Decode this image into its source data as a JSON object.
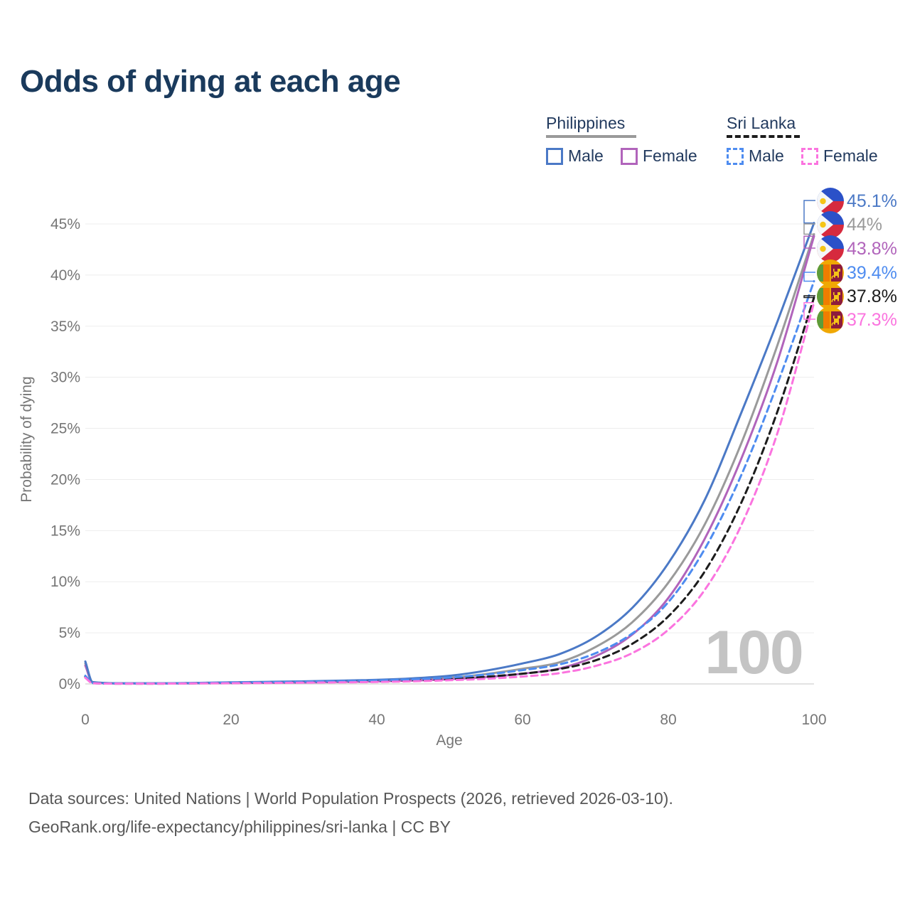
{
  "title": "Odds of dying at each age",
  "legend": {
    "groups": [
      {
        "name": "Philippines",
        "line_style": "solid",
        "underline_color": "#9a9a9a",
        "items": [
          {
            "label": "Male",
            "color": "#4b79c6"
          },
          {
            "label": "Female",
            "color": "#b164bb"
          }
        ]
      },
      {
        "name": "Sri Lanka",
        "line_style": "dashed",
        "underline_color": "#1c1c1c",
        "items": [
          {
            "label": "Male",
            "color": "#4e8cf0"
          },
          {
            "label": "Female",
            "color": "#fb74df"
          }
        ]
      }
    ]
  },
  "age_indicator": "100",
  "source": {
    "line1": "Data sources: United Nations | World Population Prospects (2026, retrieved 2026-03-10).",
    "line2": "GeoRank.org/life-expectancy/philippines/sri-lanka | CC BY"
  },
  "chart_data": {
    "type": "line",
    "title": "Odds of dying at each age",
    "xlabel": "Age",
    "ylabel": "Probability of dying",
    "xlim": [
      0,
      100
    ],
    "ylim_pct": [
      0,
      47
    ],
    "x_ticks": [
      0,
      20,
      40,
      60,
      80,
      100
    ],
    "y_ticks_pct": [
      0,
      5,
      10,
      15,
      20,
      25,
      30,
      35,
      40,
      45
    ],
    "grid": "horizontal",
    "hover_age": 100,
    "ages": [
      0,
      1,
      5,
      10,
      15,
      20,
      25,
      30,
      35,
      40,
      45,
      50,
      55,
      60,
      65,
      70,
      75,
      80,
      85,
      90,
      95,
      100
    ],
    "series": [
      {
        "name": "Philippines Male",
        "country": "Philippines",
        "flag": "ph",
        "sex": "Male",
        "style": "solid",
        "color": "#4b79c6",
        "end_label": "45.1%",
        "end_value_pct": 45.1,
        "values_pct": [
          2.2,
          0.18,
          0.06,
          0.06,
          0.1,
          0.16,
          0.2,
          0.25,
          0.32,
          0.4,
          0.55,
          0.8,
          1.3,
          2.0,
          2.9,
          4.6,
          7.4,
          11.8,
          18.0,
          26.5,
          35.5,
          45.1
        ]
      },
      {
        "name": "Philippines",
        "country": "Philippines",
        "flag": "ph",
        "sex": "Both",
        "style": "solid",
        "color": "#9a9a9a",
        "end_label": "44%",
        "end_value_pct": 44.0,
        "values_pct": [
          2.0,
          0.16,
          0.05,
          0.05,
          0.08,
          0.12,
          0.15,
          0.19,
          0.25,
          0.31,
          0.43,
          0.6,
          0.97,
          1.48,
          2.1,
          3.6,
          6.0,
          9.9,
          15.6,
          23.5,
          33.2,
          44.0
        ]
      },
      {
        "name": "Philippines Female",
        "country": "Philippines",
        "flag": "ph",
        "sex": "Female",
        "style": "solid",
        "color": "#b164bb",
        "end_label": "43.8%",
        "end_value_pct": 43.8,
        "values_pct": [
          1.8,
          0.14,
          0.05,
          0.04,
          0.06,
          0.08,
          0.11,
          0.14,
          0.19,
          0.24,
          0.33,
          0.46,
          0.67,
          1.0,
          1.5,
          2.7,
          4.8,
          8.4,
          14.2,
          22.0,
          31.6,
          43.8
        ]
      },
      {
        "name": "Sri Lanka Male",
        "country": "Sri Lanka",
        "flag": "lk",
        "sex": "Male",
        "style": "dashed",
        "color": "#4e8cf0",
        "end_label": "39.4%",
        "end_value_pct": 39.4,
        "values_pct": [
          0.8,
          0.09,
          0.04,
          0.04,
          0.08,
          0.13,
          0.17,
          0.21,
          0.27,
          0.34,
          0.45,
          0.62,
          0.92,
          1.35,
          1.9,
          3.0,
          4.9,
          8.0,
          13.2,
          20.4,
          29.4,
          39.4
        ]
      },
      {
        "name": "Sri Lanka",
        "country": "Sri Lanka",
        "flag": "lk",
        "sex": "Both",
        "style": "dashed",
        "color": "#1c1c1c",
        "end_label": "37.8%",
        "end_value_pct": 37.8,
        "values_pct": [
          0.7,
          0.08,
          0.03,
          0.03,
          0.06,
          0.09,
          0.12,
          0.16,
          0.2,
          0.26,
          0.35,
          0.48,
          0.7,
          1.0,
          1.45,
          2.3,
          3.9,
          6.6,
          11.0,
          17.7,
          26.7,
          37.8
        ]
      },
      {
        "name": "Sri Lanka Female",
        "country": "Sri Lanka",
        "flag": "lk",
        "sex": "Female",
        "style": "dashed",
        "color": "#fb74df",
        "end_label": "37.3%",
        "end_value_pct": 37.3,
        "values_pct": [
          0.6,
          0.07,
          0.03,
          0.03,
          0.05,
          0.07,
          0.09,
          0.12,
          0.15,
          0.19,
          0.26,
          0.36,
          0.5,
          0.72,
          1.05,
          1.75,
          3.0,
          5.3,
          9.2,
          15.5,
          24.6,
          37.3
        ]
      }
    ]
  }
}
